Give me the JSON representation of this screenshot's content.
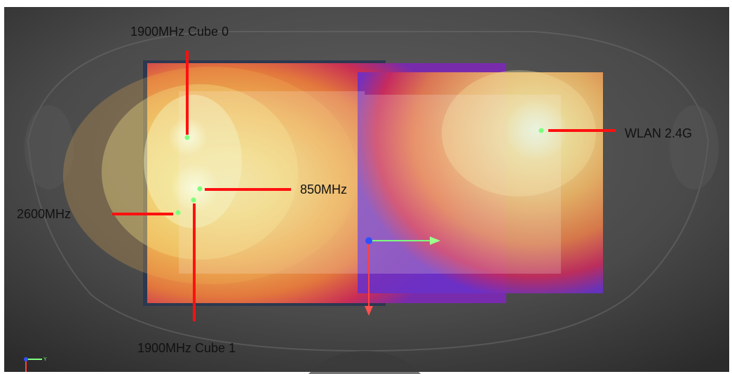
{
  "annotations": {
    "cube0": "1900MHz Cube 0",
    "wlan": "WLAN 2.4G",
    "mhz850": "850MHz",
    "mhz2600": "2600MHz",
    "cube1": "1900MHz Cube 1"
  },
  "colors": {
    "background_light": "#5a5a5a",
    "background_dark": "#2a2a2a",
    "hotspot_peak": "#f4f7c0",
    "hotspot_mid": "#f0b24a",
    "hotspot_edge": "#c02a5a",
    "hotspot_outer": "#5a2ad0",
    "leader_line": "#ff1010",
    "marker": "#7dff7d",
    "axis_x": "#7dff7d",
    "axis_y": "#ff4040",
    "axis_z": "#3050ff"
  }
}
